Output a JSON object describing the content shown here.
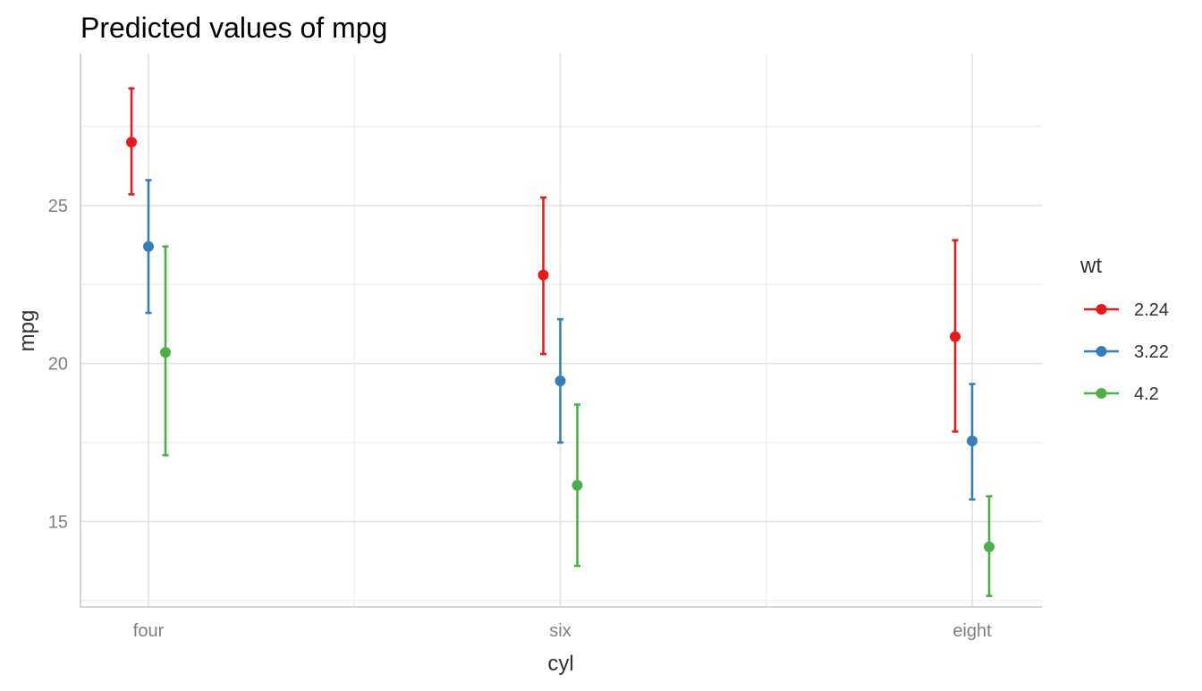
{
  "chart_data": {
    "type": "scatter",
    "title": "Predicted values of mpg",
    "xlabel": "cyl",
    "ylabel": "mpg",
    "categories": [
      "four",
      "six",
      "eight"
    ],
    "y_ticks": [
      15,
      20,
      25
    ],
    "ylim": [
      12.3,
      29.8
    ],
    "grid": true,
    "legend_title": "wt",
    "legend_position": "right",
    "series": [
      {
        "name": "2.24",
        "color": "#E41A1C",
        "values": [
          27.0,
          22.8,
          20.85
        ],
        "lower": [
          25.35,
          20.3,
          17.85
        ],
        "upper": [
          28.7,
          25.25,
          23.9
        ]
      },
      {
        "name": "3.22",
        "color": "#377EB8",
        "values": [
          23.7,
          19.45,
          17.55
        ],
        "lower": [
          21.6,
          17.5,
          15.7
        ],
        "upper": [
          25.8,
          21.4,
          19.35
        ]
      },
      {
        "name": "4.2",
        "color": "#4DAF4A",
        "values": [
          20.35,
          16.15,
          14.2
        ],
        "lower": [
          17.1,
          13.6,
          12.65
        ],
        "upper": [
          23.7,
          18.7,
          15.8
        ]
      }
    ]
  }
}
